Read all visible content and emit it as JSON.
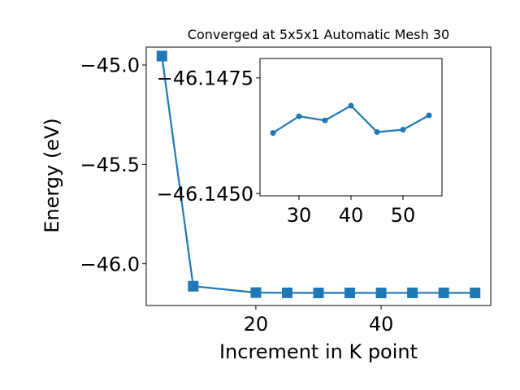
{
  "chart_data": [
    {
      "type": "line",
      "title": "Converged at 5x5x1 Automatic Mesh 30",
      "xlabel": "Increment in K point",
      "ylabel": "Energy (eV)",
      "xlim": [
        2.5,
        57.5
      ],
      "ylim": [
        -46.21,
        -44.91
      ],
      "xticks": [
        "20",
        "40"
      ],
      "xtick_values": [
        20,
        40
      ],
      "yticks": [
        "−45.0",
        "−45.5",
        "−46.0"
      ],
      "ytick_values": [
        -45.0,
        -45.5,
        -46.0
      ],
      "grid": false,
      "marker": "square",
      "color": "#1f77b4",
      "series": [
        {
          "x": [
            5,
            10,
            20,
            25,
            30,
            35,
            40,
            45,
            50,
            55
          ],
          "y": [
            -44.955,
            -46.113,
            -46.145,
            -46.1463,
            -46.1467,
            -46.1466,
            -46.1469,
            -46.1463,
            -46.1464,
            -46.1467
          ]
        }
      ]
    },
    {
      "type": "line",
      "title": "",
      "xlabel": "",
      "ylabel": "",
      "xlim": [
        22.5,
        57.5
      ],
      "ylim": [
        -46.14495,
        -46.14792
      ],
      "xticks": [
        "30",
        "40",
        "50"
      ],
      "xtick_values": [
        30,
        40,
        50
      ],
      "yticks": [
        "−46.1475",
        "−46.1450"
      ],
      "ytick_values": [
        -46.1475,
        -46.145
      ],
      "grid": false,
      "marker": "circle",
      "color": "#1f77b4",
      "series": [
        {
          "x": [
            25,
            30,
            35,
            40,
            45,
            50,
            55
          ],
          "y": [
            -46.14631,
            -46.14667,
            -46.14658,
            -46.1469,
            -46.14633,
            -46.14638,
            -46.14669
          ]
        }
      ]
    }
  ]
}
